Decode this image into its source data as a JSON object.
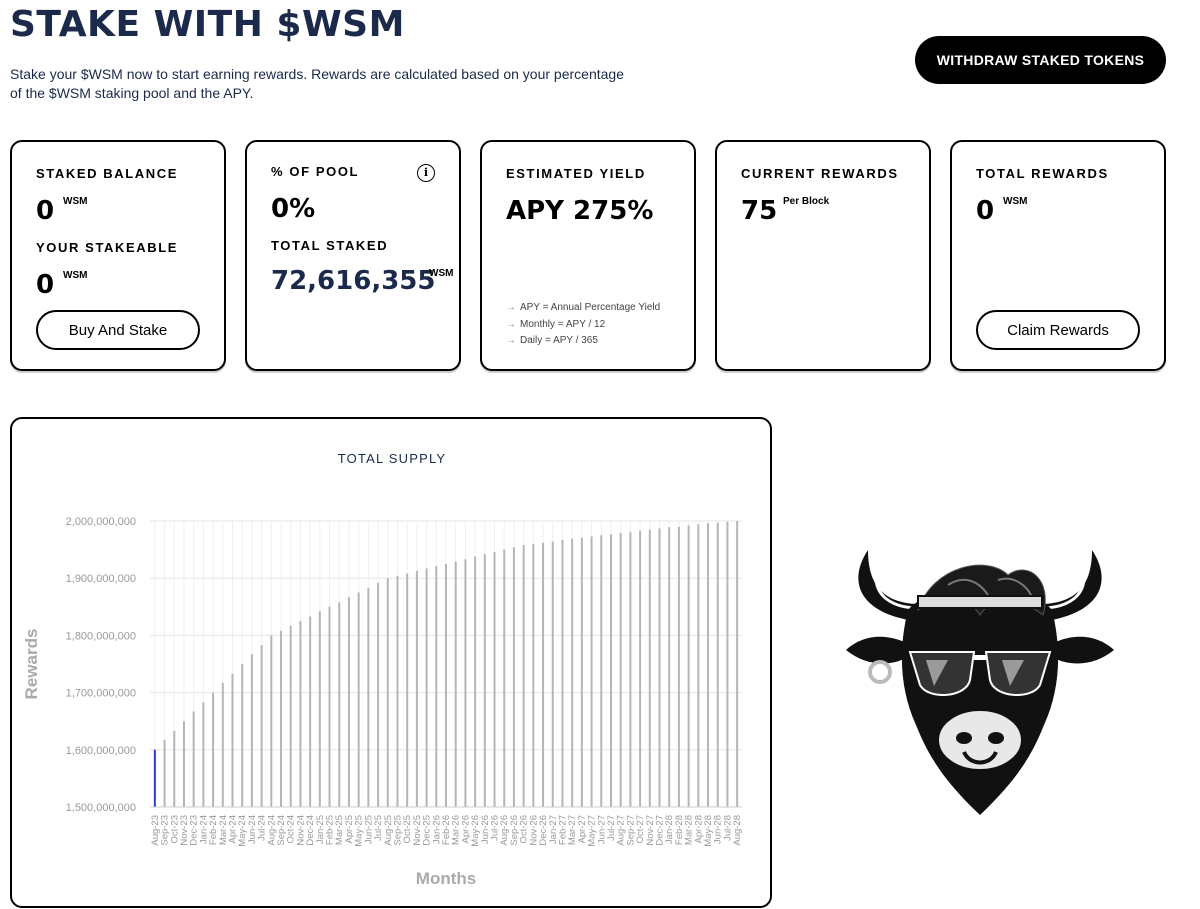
{
  "header": {
    "title": "STAKE WITH $WSM",
    "intro_line1": "Stake your $WSM now to start earning rewards. Rewards are calculated based on your percentage",
    "intro_line2": "of the $WSM staking pool and the APY.",
    "withdraw_label": "WITHDRAW STAKED TOKENS"
  },
  "cards": {
    "staked": {
      "label": "STAKED BALANCE",
      "value": "0",
      "unit": "WSM",
      "stakeable_label": "YOUR STAKEABLE",
      "stakeable_value": "0",
      "stakeable_unit": "WSM",
      "button": "Buy And Stake"
    },
    "pool": {
      "label": "% OF POOL",
      "value": "0%",
      "info_icon": "info-icon",
      "info_glyph": "i",
      "total_label": "TOTAL STAKED",
      "total_value": "72,616,355",
      "total_unit": "WSM"
    },
    "yield": {
      "label": "ESTIMATED YIELD",
      "value": "APY 275%",
      "notes": [
        "APY = Annual Percentage Yield",
        "Monthly = APY / 12",
        "Daily = APY / 365"
      ]
    },
    "current": {
      "label": "CURRENT REWARDS",
      "value": "75",
      "unit": "Per Block"
    },
    "total": {
      "label": "TOTAL REWARDS",
      "value": "0",
      "unit": "WSM",
      "button": "Claim Rewards"
    }
  },
  "colors": {
    "navy": "#1b2a4a",
    "bar": "#b5b5b5",
    "highlight_bar": "#2a3bd6",
    "grid": "#e6e6e6"
  },
  "chart_data": {
    "type": "bar",
    "title": "TOTAL SUPPLY",
    "xlabel": "Months",
    "ylabel": "Rewards",
    "ylim": [
      1500000000,
      2000000000
    ],
    "yticks": [
      1500000000,
      1600000000,
      1700000000,
      1800000000,
      1900000000,
      2000000000
    ],
    "ytick_labels": [
      "1,500,000,000",
      "1,600,000,000",
      "1,700,000,000",
      "1,800,000,000",
      "1,900,000,000",
      "2,000,000,000"
    ],
    "highlight_index": 0,
    "categories": [
      "Aug-23",
      "Sep-23",
      "Oct-23",
      "Nov-23",
      "Dec-23",
      "Jan-24",
      "Feb-24",
      "Mar-24",
      "Apr-24",
      "May-24",
      "Jun-24",
      "Jul-24",
      "Aug-24",
      "Sep-24",
      "Oct-24",
      "Nov-24",
      "Dec-24",
      "Jan-25",
      "Feb-25",
      "Mar-25",
      "Apr-25",
      "May-25",
      "Jun-25",
      "Jul-25",
      "Aug-25",
      "Sep-25",
      "Oct-25",
      "Nov-25",
      "Dec-25",
      "Jan-26",
      "Feb-26",
      "Mar-26",
      "Apr-26",
      "May-26",
      "Jun-26",
      "Jul-26",
      "Aug-26",
      "Sep-26",
      "Oct-26",
      "Nov-26",
      "Dec-26",
      "Jan-27",
      "Feb-27",
      "Mar-27",
      "Apr-27",
      "May-27",
      "Jun-27",
      "Jul-27",
      "Aug-27",
      "Sep-27",
      "Oct-27",
      "Nov-27",
      "Dec-27",
      "Jan-28",
      "Feb-28",
      "Mar-28",
      "Apr-28",
      "May-28",
      "Jun-28",
      "Jul-28",
      "Aug-28"
    ],
    "values": [
      1600000000,
      1617000000,
      1633000000,
      1650000000,
      1667000000,
      1683000000,
      1700000000,
      1717000000,
      1733000000,
      1750000000,
      1767000000,
      1783000000,
      1800000000,
      1808000000,
      1817000000,
      1825000000,
      1833000000,
      1842000000,
      1850000000,
      1858000000,
      1867000000,
      1875000000,
      1883000000,
      1892000000,
      1900000000,
      1904000000,
      1908000000,
      1913000000,
      1917000000,
      1921000000,
      1925000000,
      1929000000,
      1933000000,
      1938000000,
      1942000000,
      1946000000,
      1950000000,
      1954000000,
      1958000000,
      1960000000,
      1962000000,
      1964000000,
      1967000000,
      1969000000,
      1971000000,
      1973000000,
      1975000000,
      1977000000,
      1979000000,
      1981000000,
      1983000000,
      1985000000,
      1987000000,
      1989000000,
      1990000000,
      1992000000,
      1994000000,
      1996000000,
      1997000000,
      1999000000,
      2000000000
    ]
  }
}
